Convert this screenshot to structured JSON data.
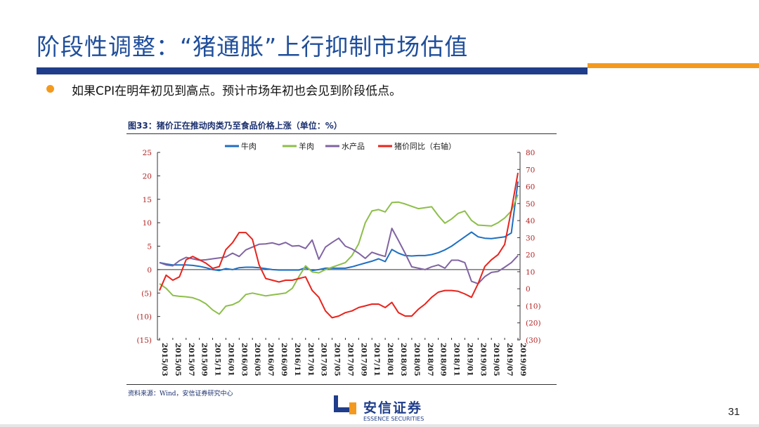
{
  "slide": {
    "title": "阶段性调整：“猪通胀”上行抑制市场估值",
    "bullet": "如果CPI在明年初见到高点。预计市场年初也会见到阶段低点。",
    "figure_title": "图33：猪价正在推动肉类乃至食品价格上涨（单位：%）",
    "source": "资料来源：Wind，安信证券研究中心",
    "page_number": "31",
    "logo_cn": "安信证券",
    "logo_en": "ESSENCE SECURITIES",
    "colors": {
      "title": "#1f4e9b",
      "bar_blue": "#1f3d8a",
      "bar_orange": "#f39a1e"
    }
  },
  "chart_data": {
    "type": "line",
    "title": "",
    "x": [
      "2015/03",
      "2015/04",
      "2015/05",
      "2015/06",
      "2015/07",
      "2015/08",
      "2015/09",
      "2015/10",
      "2015/11",
      "2015/12",
      "2016/01",
      "2016/02",
      "2016/03",
      "2016/04",
      "2016/05",
      "2016/06",
      "2016/07",
      "2016/08",
      "2016/09",
      "2016/10",
      "2016/11",
      "2016/12",
      "2017/01",
      "2017/02",
      "2017/03",
      "2017/04",
      "2017/05",
      "2017/06",
      "2017/07",
      "2017/08",
      "2017/09",
      "2017/10",
      "2017/11",
      "2017/12",
      "2018/01",
      "2018/02",
      "2018/03",
      "2018/04",
      "2018/05",
      "2018/06",
      "2018/07",
      "2018/08",
      "2018/09",
      "2018/10",
      "2018/11",
      "2018/12",
      "2019/01",
      "2019/02",
      "2019/03",
      "2019/04",
      "2019/05",
      "2019/06",
      "2019/07",
      "2019/08",
      "2019/09"
    ],
    "x_tick_labels": [
      "2015/03",
      "2015/05",
      "2015/07",
      "2015/09",
      "2015/11",
      "2016/01",
      "2016/03",
      "2016/05",
      "2016/07",
      "2016/09",
      "2016/11",
      "2017/01",
      "2017/03",
      "2017/05",
      "2017/07",
      "2017/09",
      "2017/11",
      "2018/01",
      "2018/03",
      "2018/05",
      "2018/07",
      "2018/09",
      "2018/11",
      "2019/01",
      "2019/03",
      "2019/05",
      "2019/07",
      "2019/09"
    ],
    "y_left": {
      "ylim": [
        -15,
        25
      ],
      "ticks": [
        25,
        20,
        15,
        10,
        5,
        0,
        -5,
        -10,
        -15
      ],
      "tick_labels": [
        "25",
        "20",
        "15",
        "10",
        "5",
        "0",
        "(5)",
        "(10)",
        "(15)"
      ]
    },
    "y_right": {
      "ylim": [
        -30,
        80
      ],
      "ticks": [
        80,
        70,
        60,
        50,
        40,
        30,
        20,
        10,
        0,
        -10,
        -20,
        -30
      ],
      "tick_labels": [
        "80",
        "70",
        "60",
        "50",
        "40",
        "30",
        "20",
        "10",
        "0",
        "(10)",
        "(20)",
        "(30)"
      ]
    },
    "legend_position": "top",
    "series": [
      {
        "name": "牛肉",
        "axis": "left",
        "color": "#1f6fc2",
        "values": [
          1.5,
          1.2,
          1.0,
          1.0,
          1.0,
          0.9,
          0.7,
          0.4,
          0.0,
          -0.2,
          0.2,
          0.0,
          0.4,
          0.5,
          0.5,
          0.4,
          0.2,
          0.0,
          -0.1,
          -0.1,
          -0.1,
          -0.1,
          0.4,
          -0.2,
          0.0,
          0.3,
          0.3,
          0.3,
          0.3,
          0.6,
          1.0,
          1.4,
          1.8,
          2.3,
          1.7,
          4.3,
          3.5,
          3.0,
          2.9,
          3.0,
          3.0,
          3.2,
          3.6,
          4.2,
          5.0,
          6.0,
          7.0,
          8.0,
          7.0,
          6.7,
          6.6,
          6.8,
          7.0,
          7.8,
          18.8
        ]
      },
      {
        "name": "羊肉",
        "axis": "left",
        "color": "#8dbe4a",
        "values": [
          -3.0,
          -4.0,
          -5.5,
          -5.7,
          -5.8,
          -6.0,
          -6.5,
          -7.3,
          -8.6,
          -9.5,
          -7.8,
          -7.5,
          -6.8,
          -5.3,
          -5.0,
          -5.3,
          -5.6,
          -5.4,
          -5.2,
          -5.0,
          -4.0,
          -1.5,
          0.8,
          -0.5,
          -0.7,
          0.0,
          0.5,
          1.0,
          1.5,
          3.0,
          5.5,
          10.0,
          12.5,
          12.8,
          12.3,
          14.3,
          14.4,
          14.0,
          13.5,
          13.0,
          13.2,
          13.4,
          11.5,
          9.9,
          10.8,
          12.0,
          12.5,
          10.5,
          9.5,
          9.4,
          9.3,
          10.0,
          11.0,
          12.5,
          16.0
        ]
      },
      {
        "name": "水产品",
        "axis": "left",
        "color": "#8064a2",
        "values": [
          1.5,
          1.0,
          0.8,
          1.9,
          2.6,
          2.3,
          2.0,
          2.1,
          2.3,
          2.5,
          2.7,
          3.5,
          2.8,
          4.2,
          4.8,
          5.4,
          5.5,
          5.7,
          5.3,
          5.8,
          5.0,
          5.1,
          4.5,
          6.3,
          2.2,
          4.8,
          5.8,
          6.7,
          5.0,
          4.4,
          3.5,
          2.4,
          3.7,
          3.2,
          2.8,
          8.8,
          6.2,
          3.5,
          0.6,
          0.3,
          0.0,
          0.6,
          1.0,
          0.3,
          2.0,
          2.0,
          1.5,
          -2.5,
          -3.0,
          -1.5,
          -0.6,
          -0.4,
          0.5,
          1.5,
          3.0
        ]
      },
      {
        "name": "猪价同比（右轴）",
        "axis": "right",
        "color": "#e8231c",
        "values": [
          -1.0,
          8.0,
          5.0,
          7.0,
          17.0,
          19.0,
          17.0,
          15.0,
          12.0,
          13.0,
          23.0,
          27.0,
          33.0,
          33.0,
          29.0,
          14.0,
          6.0,
          5.0,
          4.0,
          5.0,
          5.0,
          6.0,
          7.0,
          -1.0,
          -5.0,
          -13.0,
          -17.0,
          -16.0,
          -14.0,
          -13.0,
          -11.0,
          -10.0,
          -9.0,
          -9.0,
          -11.0,
          -8.0,
          -14.0,
          -16.0,
          -16.0,
          -12.0,
          -9.0,
          -5.0,
          -2.0,
          -1.0,
          -1.0,
          -1.5,
          -3.0,
          -5.0,
          3.0,
          13.0,
          17.0,
          20.0,
          26.0,
          46.0,
          68.0
        ]
      }
    ]
  }
}
